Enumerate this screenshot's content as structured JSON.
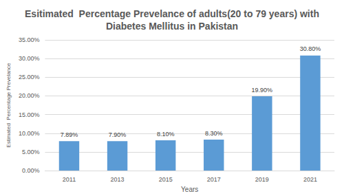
{
  "chart_data": {
    "type": "bar",
    "title": "Esitimated  Percentage Prevelance of adults(20 to 79 years) with\nDiabetes Mellitus in Pakistan",
    "x_label": "Years",
    "y_label": "Estimated  Percentage Prevelance",
    "categories": [
      "2011",
      "2013",
      "2015",
      "2017",
      "2019",
      "2021"
    ],
    "values": [
      7.89,
      7.9,
      8.1,
      8.3,
      19.9,
      30.8
    ],
    "value_labels": [
      "7.89%",
      "7.90%",
      "8.10%",
      "8.30%",
      "19.90%",
      "30.80%"
    ],
    "color": "#5b9bd5",
    "ylim": [
      0,
      35
    ],
    "yticks": [
      {
        "value": 0,
        "label": "0.00%"
      },
      {
        "value": 5,
        "label": "5.00%"
      },
      {
        "value": 10,
        "label": "10.00%"
      },
      {
        "value": 15,
        "label": "15.00%"
      },
      {
        "value": 20,
        "label": "20.00%"
      },
      {
        "value": 25,
        "label": "25.00%"
      },
      {
        "value": 30,
        "label": "30.00%"
      },
      {
        "value": 35,
        "label": "35.00%"
      }
    ],
    "grid": true,
    "data_labels": true
  }
}
